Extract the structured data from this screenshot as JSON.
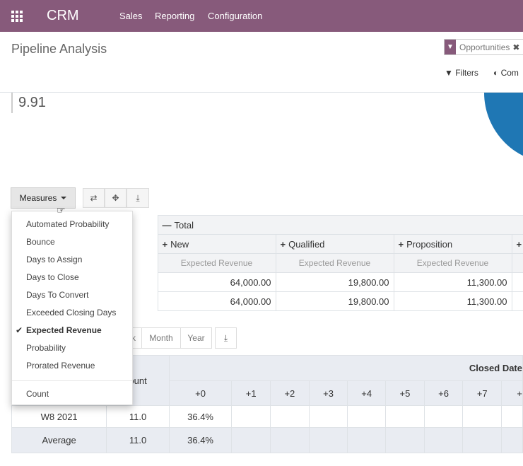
{
  "topbar": {
    "brand": "CRM",
    "menu": [
      "Sales",
      "Reporting",
      "Configuration"
    ]
  },
  "control_panel": {
    "title": "Pipeline Analysis",
    "facet": "Opportunities",
    "filters_label": "Filters",
    "compare_label": "Com"
  },
  "kpi_value": "9.91",
  "pivot_toolbar": {
    "measures_label": "Measures"
  },
  "measures_menu": {
    "items": [
      "Automated Probability",
      "Bounce",
      "Days to Assign",
      "Days to Close",
      "Days To Convert",
      "Exceeded Closing Days",
      "Expected Revenue",
      "Probability",
      "Prorated Revenue"
    ],
    "selected": "Expected Revenue",
    "count_label": "Count"
  },
  "pivot": {
    "total_label": "Total",
    "columns": [
      "New",
      "Qualified",
      "Proposition"
    ],
    "measure_label": "Expected Revenue",
    "rows": [
      {
        "values": [
          "64,000.00",
          "19,800.00",
          "11,300.00"
        ],
        "bold": true
      },
      {
        "values": [
          "64,000.00",
          "19,800.00",
          "11,300.00"
        ],
        "bold": false
      }
    ]
  },
  "cohort_toolbar": {
    "partial": "k",
    "month": "Month",
    "year": "Year"
  },
  "cohort": {
    "count_header": "ount",
    "closed_header": "Closed Date",
    "intervals": [
      "+0",
      "+1",
      "+2",
      "+3",
      "+4",
      "+5",
      "+6",
      "+7",
      "+"
    ],
    "rows": [
      {
        "label": "W8 2021",
        "count": "11.0",
        "first": "36.4%"
      },
      {
        "label": "Average",
        "count": "11.0",
        "first": "36.4%"
      }
    ]
  }
}
